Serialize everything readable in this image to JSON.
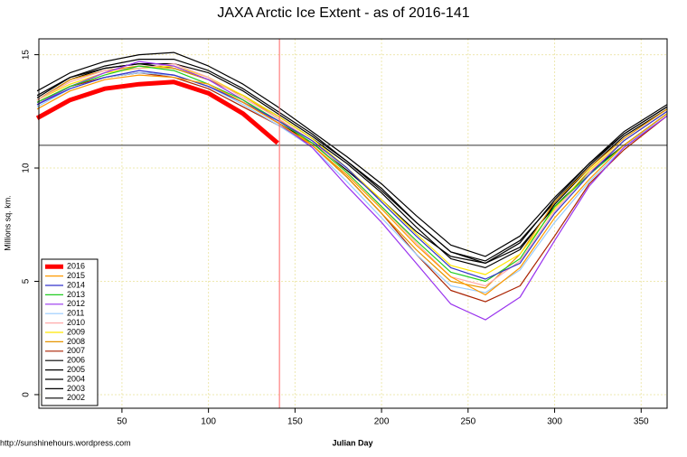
{
  "chart_data": {
    "type": "line",
    "title": "JAXA Arctic Ice Extent - as of 2016-141",
    "x_label": "Julian Day",
    "y_label": "Millions sq. km.",
    "footnote": "http://sunshinehours.wordpress.com",
    "x": [
      1,
      20,
      40,
      60,
      80,
      100,
      120,
      140,
      160,
      180,
      200,
      220,
      240,
      260,
      280,
      300,
      320,
      340,
      365
    ],
    "xlim": [
      2,
      365
    ],
    "ylim": [
      -0.6,
      15.7
    ],
    "xticks": [
      50,
      100,
      150,
      200,
      250,
      300,
      350
    ],
    "yticks": [
      0,
      5,
      10,
      15
    ],
    "grid": true,
    "hline": 11,
    "vline": 141,
    "legend": "bottomleft",
    "series": [
      {
        "name": "2016",
        "color": "#ff0000",
        "values": [
          12.2,
          13.0,
          13.5,
          13.7,
          13.8,
          13.3,
          12.4,
          11.1,
          null,
          null,
          null,
          null,
          null,
          null,
          null,
          null,
          null,
          null,
          null
        ]
      },
      {
        "name": "2015",
        "color": "#ff9900",
        "values": [
          12.6,
          13.4,
          13.9,
          14.1,
          14.0,
          13.7,
          12.9,
          12.0,
          11.0,
          9.7,
          8.2,
          6.6,
          5.2,
          4.4,
          5.6,
          7.8,
          9.5,
          11.0,
          12.4
        ]
      },
      {
        "name": "2014",
        "color": "#3333cc",
        "values": [
          12.8,
          13.5,
          14.0,
          14.3,
          14.1,
          13.6,
          12.9,
          12.1,
          11.2,
          10.0,
          8.5,
          7.0,
          5.6,
          5.1,
          5.8,
          8.0,
          9.7,
          11.2,
          12.5
        ]
      },
      {
        "name": "2013",
        "color": "#22cc22",
        "values": [
          12.9,
          13.6,
          14.1,
          14.5,
          14.3,
          13.7,
          13.0,
          12.1,
          11.1,
          9.8,
          8.3,
          6.8,
          5.4,
          5.0,
          6.0,
          8.3,
          9.7,
          11.0,
          12.4
        ]
      },
      {
        "name": "2012",
        "color": "#9933ee",
        "values": [
          12.8,
          13.6,
          14.2,
          14.7,
          14.5,
          13.9,
          13.0,
          12.0,
          10.9,
          9.2,
          7.6,
          5.8,
          4.0,
          3.3,
          4.3,
          6.8,
          9.2,
          10.9,
          12.3
        ]
      },
      {
        "name": "2011",
        "color": "#99ccff",
        "values": [
          12.7,
          13.5,
          14.0,
          14.2,
          14.1,
          13.6,
          12.8,
          11.9,
          10.9,
          9.4,
          7.8,
          6.2,
          4.8,
          4.5,
          5.5,
          7.6,
          9.4,
          10.9,
          12.4
        ]
      },
      {
        "name": "2010",
        "color": "#ffaaaa",
        "values": [
          13.0,
          13.8,
          14.3,
          14.4,
          14.6,
          14.0,
          13.1,
          12.2,
          11.2,
          9.8,
          8.3,
          6.7,
          5.2,
          4.8,
          5.9,
          8.1,
          9.8,
          11.2,
          12.5
        ]
      },
      {
        "name": "2009",
        "color": "#ffe600",
        "values": [
          13.0,
          13.7,
          14.2,
          14.4,
          14.5,
          14.0,
          13.2,
          12.3,
          11.3,
          10.0,
          8.6,
          7.1,
          5.7,
          5.3,
          6.2,
          8.2,
          9.9,
          11.2,
          12.5
        ]
      },
      {
        "name": "2008",
        "color": "#e69500",
        "values": [
          13.0,
          13.9,
          14.3,
          14.5,
          14.4,
          13.9,
          13.2,
          12.2,
          11.0,
          9.6,
          8.0,
          6.4,
          5.0,
          4.7,
          6.2,
          8.5,
          10.0,
          11.3,
          12.6
        ]
      },
      {
        "name": "2007",
        "color": "#aa2200",
        "values": [
          12.9,
          13.6,
          14.0,
          14.2,
          14.0,
          13.5,
          12.7,
          11.9,
          11.0,
          9.6,
          8.0,
          6.2,
          4.6,
          4.1,
          4.8,
          7.0,
          9.3,
          10.8,
          12.3
        ]
      },
      {
        "name": "2006",
        "color": "#000000",
        "values": [
          12.8,
          13.6,
          14.0,
          14.2,
          14.1,
          13.6,
          12.9,
          12.0,
          11.1,
          9.9,
          8.6,
          7.2,
          6.1,
          5.8,
          6.5,
          8.3,
          9.8,
          11.0,
          12.4
        ]
      },
      {
        "name": "2005",
        "color": "#000000",
        "values": [
          13.2,
          14.0,
          14.4,
          14.6,
          14.4,
          13.9,
          13.2,
          12.3,
          11.3,
          10.2,
          8.9,
          7.4,
          6.0,
          5.6,
          6.4,
          8.4,
          10.0,
          11.4,
          12.6
        ]
      },
      {
        "name": "2004",
        "color": "#000000",
        "values": [
          13.1,
          14.0,
          14.5,
          14.8,
          14.8,
          14.3,
          13.5,
          12.5,
          11.5,
          10.3,
          9.1,
          7.6,
          6.3,
          5.9,
          6.8,
          8.5,
          10.1,
          11.5,
          12.7
        ]
      },
      {
        "name": "2003",
        "color": "#000000",
        "values": [
          13.4,
          14.2,
          14.7,
          15.0,
          15.1,
          14.5,
          13.7,
          12.7,
          11.6,
          10.5,
          9.3,
          7.9,
          6.6,
          6.1,
          7.0,
          8.7,
          10.2,
          11.6,
          12.8
        ]
      },
      {
        "name": "2002",
        "color": "#000000",
        "values": [
          13.0,
          13.9,
          14.4,
          14.6,
          14.6,
          14.2,
          13.4,
          12.4,
          11.4,
          10.3,
          9.0,
          7.6,
          6.3,
          5.8,
          6.7,
          8.6,
          10.2,
          11.5,
          12.7
        ]
      }
    ]
  }
}
